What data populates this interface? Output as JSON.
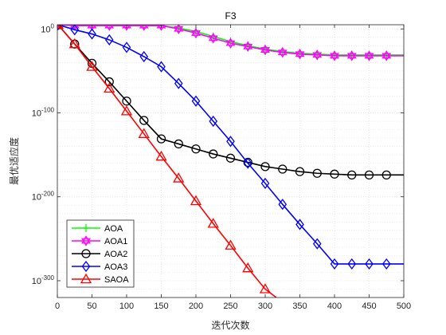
{
  "chart_data": {
    "type": "line",
    "title": "F3",
    "xlabel": "迭代次数",
    "ylabel": "最优适应度",
    "x_scale": "linear",
    "y_scale": "log",
    "xlim": [
      0,
      500
    ],
    "ylim_exponent": [
      -320,
      5
    ],
    "x_ticks": [
      0,
      50,
      100,
      150,
      200,
      250,
      300,
      350,
      400,
      450,
      500
    ],
    "x_tick_labels": [
      "0",
      "50",
      "100",
      "150",
      "200",
      "250",
      "300",
      "350",
      "400",
      "450",
      "500"
    ],
    "y_ticks_exponent": [
      0,
      -100,
      -200,
      -300
    ],
    "y_tick_labels": [
      {
        "base": "10",
        "exp": "0"
      },
      {
        "base": "10",
        "exp": "-100"
      },
      {
        "base": "10",
        "exp": "-200"
      },
      {
        "base": "10",
        "exp": "-300"
      }
    ],
    "grid": true,
    "legend_position": "bottom-left",
    "series": [
      {
        "name": "AOA",
        "color": "#00ff00",
        "marker": "plus",
        "x": [
          1,
          25,
          50,
          75,
          100,
          125,
          150,
          175,
          200,
          225,
          250,
          275,
          300,
          325,
          350,
          375,
          400,
          425,
          450,
          475,
          500
        ],
        "y_exponent": [
          5,
          4,
          4,
          4,
          4,
          4,
          4,
          1,
          -3,
          -9,
          -15,
          -20,
          -24,
          -27,
          -29,
          -30,
          -31,
          -31,
          -31,
          -31,
          -31
        ]
      },
      {
        "name": "AOA1",
        "color": "#ff00ff",
        "marker": "hexagram",
        "x": [
          1,
          25,
          50,
          75,
          100,
          125,
          150,
          175,
          200,
          225,
          250,
          275,
          300,
          325,
          350,
          375,
          400,
          425,
          450,
          475,
          500
        ],
        "y_exponent": [
          5,
          4,
          4,
          4,
          4,
          4,
          4,
          0,
          -5,
          -11,
          -17,
          -21,
          -25,
          -28,
          -30,
          -31,
          -32,
          -32,
          -32,
          -32,
          -32
        ]
      },
      {
        "name": "AOA2",
        "color": "#000000",
        "marker": "circle",
        "x": [
          1,
          25,
          50,
          75,
          100,
          125,
          150,
          175,
          200,
          225,
          250,
          275,
          300,
          325,
          350,
          375,
          400,
          425,
          450,
          475,
          500
        ],
        "y_exponent": [
          5,
          -18,
          -41,
          -63,
          -86,
          -109,
          -131,
          -137,
          -143,
          -149,
          -154,
          -159,
          -164,
          -167,
          -170,
          -172,
          -173,
          -174,
          -174,
          -174,
          -174
        ]
      },
      {
        "name": "AOA3",
        "color": "#0000ff",
        "marker": "diamond",
        "x": [
          1,
          25,
          50,
          75,
          100,
          125,
          150,
          175,
          200,
          225,
          250,
          275,
          300,
          325,
          350,
          375,
          400,
          425,
          450,
          475,
          500
        ],
        "y_exponent": [
          5,
          -1,
          -6,
          -13,
          -22,
          -33,
          -45,
          -65,
          -86,
          -110,
          -134,
          -160,
          -184,
          -209,
          -233,
          -256,
          -280,
          -280,
          -280,
          -280,
          -280
        ]
      },
      {
        "name": "SAOA",
        "color": "#ff0000",
        "marker": "triangle",
        "x": [
          1,
          25,
          50,
          75,
          100,
          125,
          150,
          175,
          200,
          225,
          250,
          275,
          300,
          316
        ],
        "y_exponent": [
          5,
          -18,
          -45,
          -71,
          -98,
          -125,
          -152,
          -178,
          -205,
          -232,
          -258,
          -285,
          -310,
          -320
        ]
      }
    ]
  }
}
